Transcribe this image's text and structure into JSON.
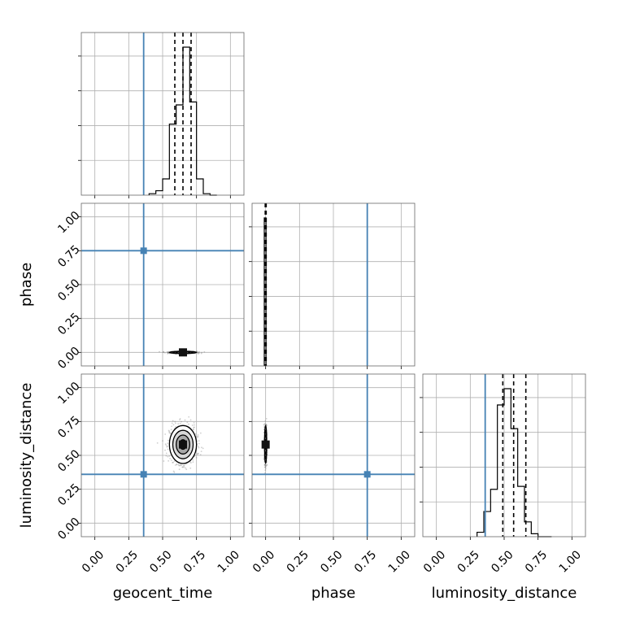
{
  "chart_data": {
    "type": "corner",
    "parameters": [
      "geocent_time",
      "phase",
      "luminosity_distance"
    ],
    "axis_range": [
      -0.1,
      1.1
    ],
    "tick_labels": [
      "0.00",
      "0.25",
      "0.50",
      "0.75",
      "1.00"
    ],
    "grid": true,
    "truths": {
      "geocent_time": 0.36,
      "phase": 0.75,
      "luminosity_distance": 0.36
    },
    "truth_color": "#4682b4",
    "marginals": [
      {
        "parameter": "geocent_time",
        "bin_edges": [
          0.4,
          0.45,
          0.5,
          0.55,
          0.6,
          0.65,
          0.7,
          0.75,
          0.8,
          0.85,
          0.9
        ],
        "counts": [
          0.01,
          0.03,
          0.11,
          0.48,
          0.61,
          1.0,
          0.63,
          0.11,
          0.01,
          0.0
        ],
        "quantiles": [
          0.59,
          0.65,
          0.71
        ]
      },
      {
        "parameter": "phase",
        "bin_edges": [
          -0.01,
          0.0,
          0.003
        ],
        "counts": [
          1.0,
          1.0
        ],
        "quantiles": [
          -0.003,
          0.0,
          0.004
        ]
      },
      {
        "parameter": "luminosity_distance",
        "bin_edges": [
          0.3,
          0.35,
          0.4,
          0.45,
          0.5,
          0.55,
          0.6,
          0.65,
          0.7,
          0.75,
          0.8,
          0.85
        ],
        "counts": [
          0.03,
          0.17,
          0.32,
          0.89,
          1.0,
          0.73,
          0.34,
          0.1,
          0.02,
          0.0,
          0.0
        ],
        "quantiles": [
          0.49,
          0.57,
          0.66
        ]
      }
    ],
    "joint": [
      {
        "x": "geocent_time",
        "y": "phase",
        "center": [
          0.65,
          0.0
        ],
        "spread": [
          0.05,
          0.004
        ]
      },
      {
        "x": "geocent_time",
        "y": "luminosity_distance",
        "center": [
          0.65,
          0.58
        ],
        "spread": [
          0.05,
          0.07
        ]
      },
      {
        "x": "phase",
        "y": "luminosity_distance",
        "center": [
          0.0,
          0.58
        ],
        "spread": [
          0.004,
          0.07
        ]
      }
    ]
  }
}
